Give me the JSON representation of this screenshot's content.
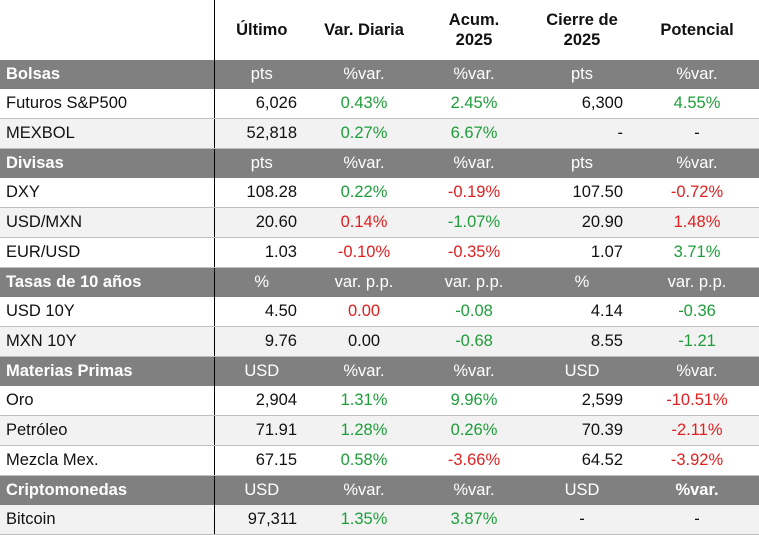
{
  "header": {
    "ultimo": "Último",
    "var_diaria": "Var. Diaria",
    "acum_l1": "Acum.",
    "acum_l2": "2025",
    "cierre_l1": "Cierre de",
    "cierre_l2": "2025",
    "potencial": "Potencial"
  },
  "colors": {
    "positive": "#1e9e3a",
    "negative": "#e02020",
    "section_bg": "#808080",
    "alt_row_bg": "#f2f2f2"
  },
  "sections": {
    "bolsas": {
      "title": "Bolsas",
      "units": [
        "pts",
        "%var.",
        "%var.",
        "pts",
        "%var."
      ],
      "rows": [
        {
          "name": "Futuros S&P500",
          "ultimo": "6,026",
          "var": "0.43%",
          "acum": "2.45%",
          "cierre": "6,300",
          "potencial": "4.55%"
        },
        {
          "name": "MEXBOL",
          "ultimo": "52,818",
          "var": "0.27%",
          "acum": "6.67%",
          "cierre": "-",
          "potencial": "-"
        }
      ]
    },
    "divisas": {
      "title": "Divisas",
      "units": [
        "pts",
        "%var.",
        "%var.",
        "pts",
        "%var."
      ],
      "rows": [
        {
          "name": "DXY",
          "ultimo": "108.28",
          "var": "0.22%",
          "acum": "-0.19%",
          "cierre": "107.50",
          "potencial": "-0.72%"
        },
        {
          "name": "USD/MXN",
          "ultimo": "20.60",
          "var": "0.14%",
          "acum": "-1.07%",
          "cierre": "20.90",
          "potencial": "1.48%"
        },
        {
          "name": "EUR/USD",
          "ultimo": "1.03",
          "var": "-0.10%",
          "acum": "-0.35%",
          "cierre": "1.07",
          "potencial": "3.71%"
        }
      ]
    },
    "tasas": {
      "title": "Tasas de 10 años",
      "units": [
        "%",
        "var. p.p.",
        "var. p.p.",
        "%",
        "var. p.p."
      ],
      "rows": [
        {
          "name": "USD 10Y",
          "ultimo": "4.50",
          "var": "0.00",
          "acum": "-0.08",
          "cierre": "4.14",
          "potencial": "-0.36"
        },
        {
          "name": "MXN 10Y",
          "ultimo": "9.76",
          "var": "0.00",
          "acum": "-0.68",
          "cierre": "8.55",
          "potencial": "-1.21"
        }
      ]
    },
    "materias": {
      "title": "Materias Primas",
      "units": [
        "USD",
        "%var.",
        "%var.",
        "USD",
        "%var."
      ],
      "rows": [
        {
          "name": "Oro",
          "ultimo": "2,904",
          "var": "1.31%",
          "acum": "9.96%",
          "cierre": "2,599",
          "potencial": "-10.51%"
        },
        {
          "name": "Petróleo",
          "ultimo": "71.91",
          "var": "1.28%",
          "acum": "0.26%",
          "cierre": "70.39",
          "potencial": "-2.11%"
        },
        {
          "name": "Mezcla Mex.",
          "ultimo": "67.15",
          "var": "0.58%",
          "acum": "-3.66%",
          "cierre": "64.52",
          "potencial": "-3.92%"
        }
      ]
    },
    "cripto": {
      "title": "Criptomonedas",
      "units": [
        "USD",
        "%var.",
        "%var.",
        "USD",
        "%var."
      ],
      "rows": [
        {
          "name": "Bitcoin",
          "ultimo": "97,311",
          "var": "1.35%",
          "acum": "3.87%",
          "cierre": "-",
          "potencial": "-"
        }
      ]
    }
  }
}
